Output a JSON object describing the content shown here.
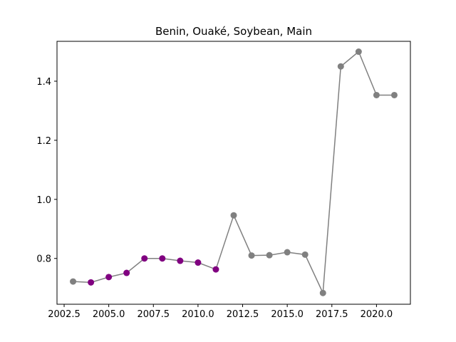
{
  "chart_data": {
    "type": "line",
    "title": "Benin, Ouaké, Soybean, Main",
    "xlabel": "",
    "ylabel": "",
    "xlim": [
      2002.1,
      2021.9
    ],
    "ylim": [
      0.645,
      1.535
    ],
    "xticks": [
      2002.5,
      2005.0,
      2007.5,
      2010.0,
      2012.5,
      2015.0,
      2017.5,
      2020.0
    ],
    "xtick_labels": [
      "2002.5",
      "2005.0",
      "2007.5",
      "2010.0",
      "2012.5",
      "2015.0",
      "2017.5",
      "2020.0"
    ],
    "yticks": [
      0.8,
      1.0,
      1.2,
      1.4
    ],
    "ytick_labels": [
      "0.8",
      "1.0",
      "1.2",
      "1.4"
    ],
    "grid": false,
    "line_color": "#808080",
    "series": [
      {
        "x": [
          2003,
          2004,
          2005,
          2006,
          2007,
          2008,
          2009,
          2010,
          2011,
          2012,
          2013,
          2014,
          2015,
          2016,
          2017,
          2018,
          2019,
          2020,
          2021
        ],
        "y": [
          0.722,
          0.719,
          0.737,
          0.751,
          0.8,
          0.8,
          0.792,
          0.786,
          0.763,
          0.946,
          0.81,
          0.811,
          0.821,
          0.813,
          0.683,
          1.45,
          1.5,
          1.353,
          1.353
        ],
        "point_colors": [
          "#808080",
          "#800080",
          "#800080",
          "#800080",
          "#800080",
          "#800080",
          "#800080",
          "#800080",
          "#800080",
          "#808080",
          "#808080",
          "#808080",
          "#808080",
          "#808080",
          "#808080",
          "#808080",
          "#808080",
          "#808080",
          "#808080"
        ]
      }
    ]
  }
}
